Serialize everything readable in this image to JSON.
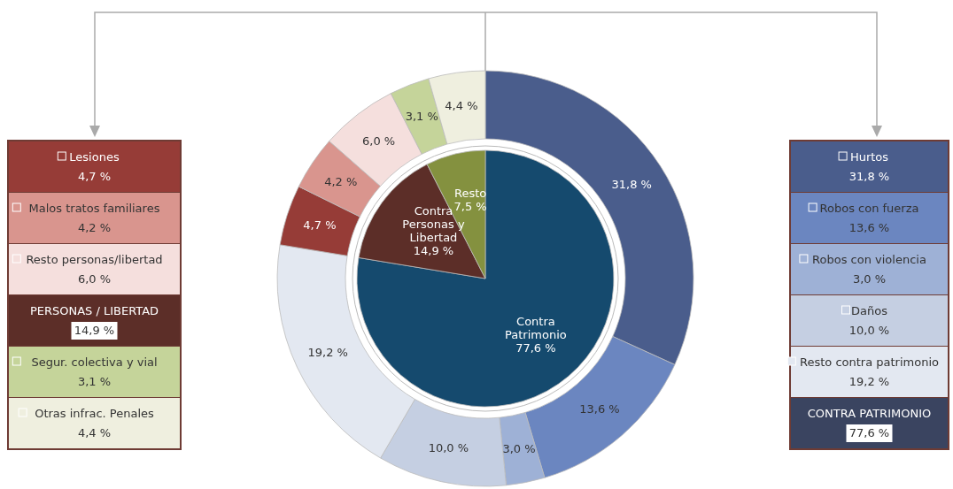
{
  "chart_data": [
    {
      "type": "donut",
      "categories": [
        "Hurtos",
        "Robos con fuerza",
        "Robos con violencia",
        "Daños",
        "Resto contra patrimonio",
        "Lesiones",
        "Malos tratos familiares",
        "Resto personas/libertad",
        "Segur. colectiva y vial",
        "Otras infrac. Penales"
      ],
      "values": [
        31.8,
        13.6,
        3.0,
        10.0,
        19.2,
        4.7,
        4.2,
        6.0,
        3.1,
        4.4
      ],
      "value_labels": [
        "31,8 %",
        "13,6 %",
        "3,0 %",
        "10,0 %",
        "19,2 %",
        "4,7 %",
        "4,2 %",
        "6,0 %",
        "3,1 %",
        "4,4 %"
      ],
      "colors": [
        "#4a5d8c",
        "#6b86c0",
        "#9eb1d6",
        "#c5cfe2",
        "#e3e8f1",
        "#963c37",
        "#d9958e",
        "#f5dfdd",
        "#c5d49a",
        "#efefdf"
      ],
      "legend": "left"
    },
    {
      "type": "pie",
      "categories": [
        "Contra Patrimonio",
        "Contra Personas y Libertad",
        "Resto"
      ],
      "values": [
        77.6,
        14.9,
        7.5
      ],
      "value_labels": [
        "77,6 %",
        "14,9 %",
        "7,5 %"
      ],
      "colors": [
        "#154a6e",
        "#5c2e28",
        "#84913f"
      ],
      "annotations": [
        "PERSONAS / LIBERTAD",
        "14,9 %",
        "CONTRA PATRIMONIO",
        "77,6 %"
      ]
    }
  ]
}
